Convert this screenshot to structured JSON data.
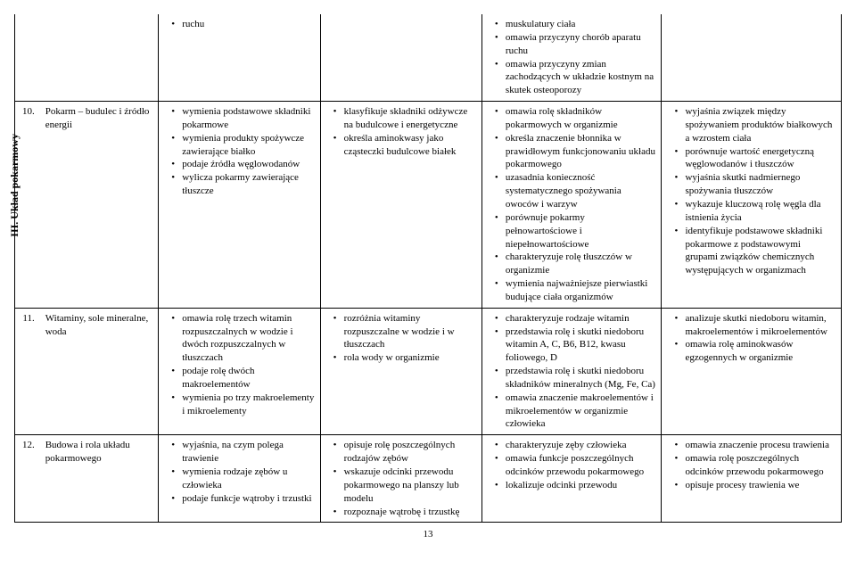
{
  "section_label": "III. Układ pokarmowy",
  "page_number": "13",
  "rows": [
    {
      "num": "",
      "topic": "",
      "c1": [
        "ruchu"
      ],
      "c2": [],
      "c3": [
        "muskulatury ciała",
        "omawia przyczyny chorób aparatu ruchu",
        "omawia przyczyny zmian zachodzących w układzie kostnym na skutek osteoporozy"
      ],
      "c4": []
    },
    {
      "num": "10.",
      "topic": "Pokarm – budulec i źródło energii",
      "c1": [
        "wymienia podstawowe składniki pokarmowe",
        "wymienia produkty spożywcze zawierające białko",
        "podaje źródła węglowodanów",
        "wylicza pokarmy zawierające tłuszcze"
      ],
      "c2": [
        "klasyfikuje składniki odżywcze na budulcowe i energetyczne",
        "określa aminokwasy jako cząsteczki budulcowe białek"
      ],
      "c3": [
        "omawia rolę składników pokarmowych w organizmie",
        "określa znaczenie błonnika w prawidłowym funkcjonowaniu układu pokarmowego",
        "uzasadnia konieczność systematycznego spożywania owoców i warzyw",
        "porównuje pokarmy pełnowartościowe i niepełnowartościowe",
        "charakteryzuje rolę tłuszczów w organizmie",
        "wymienia najważniejsze pierwiastki budujące ciała organizmów"
      ],
      "c4": [
        "wyjaśnia związek między spożywaniem produktów białkowych a wzrostem ciała",
        "porównuje wartość energetyczną węglowodanów i tłuszczów",
        "wyjaśnia skutki nadmiernego spożywania tłuszczów",
        "wykazuje kluczową rolę węgla dla istnienia życia",
        "identyfikuje podstawowe składniki pokarmowe z podstawowymi grupami związków chemicznych występujących w organizmach"
      ]
    },
    {
      "num": "11.",
      "topic": "Witaminy, sole mineralne, woda",
      "c1": [
        "omawia rolę trzech witamin rozpuszczalnych w wodzie i dwóch rozpuszczalnych w tłuszczach",
        "podaje rolę dwóch makroelementów",
        "wymienia po trzy makroelementy i mikroelementy"
      ],
      "c2": [
        "rozróżnia witaminy rozpuszczalne w wodzie i w tłuszczach",
        "rola wody w organizmie"
      ],
      "c3": [
        "charakteryzuje rodzaje witamin",
        "przedstawia rolę i skutki niedoboru witamin A, C, B6, B12, kwasu foliowego, D",
        "przedstawia rolę i skutki niedoboru składników mineralnych (Mg, Fe, Ca)",
        "omawia znaczenie makroelementów i mikroelementów w organizmie człowieka"
      ],
      "c4": [
        "analizuje skutki niedoboru witamin, makroelementów i mikroelementów",
        "omawia rolę aminokwasów egzogennych w organizmie"
      ]
    },
    {
      "num": "12.",
      "topic": "Budowa i rola układu pokarmowego",
      "c1": [
        "wyjaśnia, na czym polega trawienie",
        "wymienia rodzaje zębów u człowieka",
        "podaje funkcje wątroby i trzustki"
      ],
      "c2": [
        "opisuje rolę poszczególnych rodzajów zębów",
        "wskazuje odcinki przewodu pokarmowego na planszy lub modelu",
        "rozpoznaje wątrobę i trzustkę"
      ],
      "c3": [
        "charakteryzuje zęby człowieka",
        "omawia funkcje poszczególnych odcinków przewodu pokarmowego",
        "lokalizuje odcinki przewodu"
      ],
      "c4": [
        "omawia znaczenie procesu trawienia",
        "omawia rolę poszczególnych odcinków przewodu pokarmowego",
        "opisuje procesy trawienia we"
      ]
    }
  ]
}
